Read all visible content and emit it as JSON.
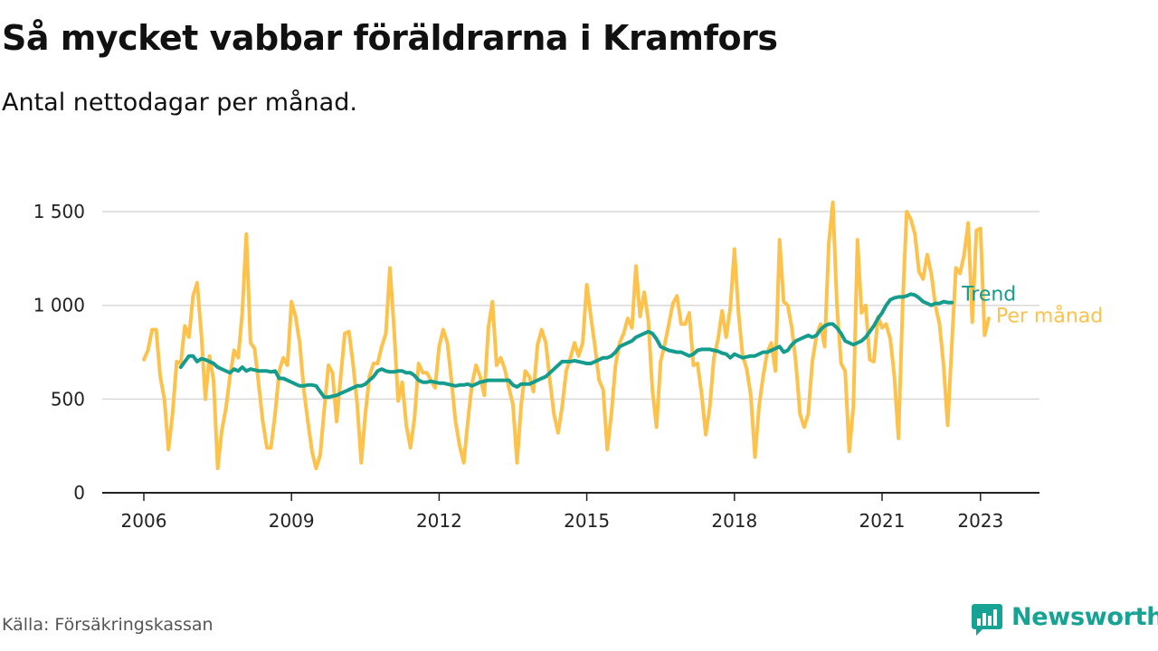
{
  "header": {
    "title": "Så mycket vabbar föräldrarna i Kramfors",
    "subtitle": "Antal nettodagar per månad."
  },
  "footer": {
    "source": "Källa: Försäkringskassan",
    "brand": "Newsworthy",
    "brand_icon": "bar-chart-speech-bubble-icon"
  },
  "colors": {
    "monthly": "#fcc24c",
    "trend": "#159c8c",
    "grid": "#d9d9d9",
    "axis": "#222222",
    "brand": "#17a394"
  },
  "chart_data": {
    "type": "line",
    "title": "Så mycket vabbar föräldrarna i Kramfors",
    "subtitle": "Antal nettodagar per månad.",
    "xlabel": "",
    "ylabel": "",
    "x_ticks": [
      "2006",
      "2009",
      "2012",
      "2015",
      "2018",
      "2021",
      "2023"
    ],
    "y_ticks": [
      "0",
      "500",
      "1 000",
      "1 500"
    ],
    "y_tick_values": [
      0,
      500,
      1000,
      1500
    ],
    "ylim": [
      0,
      1550
    ],
    "xlim": [
      "2006-01",
      "2023-04"
    ],
    "grid": "horizontal",
    "legend": "direct labels at right end of lines",
    "series": [
      {
        "name": "Trend",
        "color": "#159c8c",
        "start": "2006-10",
        "values": [
          670,
          700,
          730,
          730,
          700,
          715,
          710,
          700,
          690,
          670,
          660,
          650,
          640,
          660,
          650,
          670,
          650,
          660,
          655,
          650,
          650,
          650,
          645,
          650,
          610,
          610,
          600,
          590,
          580,
          570,
          570,
          575,
          575,
          570,
          540,
          510,
          510,
          515,
          520,
          530,
          540,
          550,
          560,
          570,
          570,
          580,
          600,
          620,
          650,
          660,
          650,
          645,
          645,
          650,
          650,
          640,
          640,
          625,
          600,
          590,
          590,
          595,
          590,
          585,
          585,
          580,
          575,
          570,
          575,
          575,
          580,
          570,
          580,
          590,
          595,
          600,
          600,
          600,
          600,
          600,
          600,
          575,
          565,
          580,
          580,
          580,
          590,
          600,
          610,
          620,
          640,
          660,
          680,
          700,
          700,
          700,
          705,
          700,
          695,
          690,
          690,
          700,
          710,
          720,
          720,
          730,
          750,
          780,
          790,
          800,
          810,
          830,
          840,
          850,
          860,
          850,
          820,
          780,
          770,
          760,
          755,
          750,
          750,
          740,
          730,
          740,
          760,
          765,
          765,
          765,
          760,
          755,
          745,
          740,
          720,
          740,
          730,
          720,
          725,
          730,
          730,
          740,
          750,
          750,
          760,
          770,
          780,
          750,
          760,
          790,
          810,
          820,
          830,
          840,
          830,
          840,
          870,
          890,
          900,
          900,
          880,
          850,
          810,
          800,
          790,
          800,
          810,
          830,
          860,
          890,
          930,
          960,
          1000,
          1030,
          1040,
          1045,
          1045,
          1050,
          1060,
          1055,
          1040,
          1020,
          1010,
          1000,
          1010,
          1010,
          1020,
          1015,
          1015
        ]
      },
      {
        "name": "Per månad",
        "color": "#fcc24c",
        "start": "2006-01",
        "values": [
          710,
          760,
          870,
          870,
          620,
          500,
          230,
          420,
          700,
          690,
          890,
          830,
          1050,
          1120,
          850,
          500,
          730,
          600,
          130,
          330,
          450,
          620,
          760,
          720,
          960,
          1380,
          800,
          770,
          580,
          380,
          240,
          240,
          420,
          650,
          720,
          680,
          1020,
          940,
          800,
          550,
          380,
          220,
          130,
          200,
          450,
          680,
          640,
          380,
          620,
          850,
          860,
          690,
          480,
          160,
          420,
          620,
          690,
          690,
          780,
          850,
          1200,
          880,
          490,
          590,
          360,
          240,
          400,
          690,
          640,
          640,
          600,
          560,
          780,
          870,
          800,
          600,
          380,
          250,
          160,
          380,
          580,
          680,
          620,
          520,
          880,
          1020,
          680,
          720,
          660,
          560,
          470,
          160,
          470,
          650,
          620,
          540,
          790,
          870,
          800,
          600,
          420,
          320,
          460,
          650,
          720,
          800,
          730,
          800,
          1110,
          940,
          780,
          600,
          550,
          230,
          420,
          680,
          800,
          850,
          930,
          880,
          1210,
          940,
          1070,
          920,
          550,
          350,
          700,
          790,
          900,
          1010,
          1050,
          900,
          900,
          960,
          680,
          690,
          530,
          310,
          460,
          720,
          820,
          970,
          830,
          990,
          1300,
          960,
          730,
          660,
          520,
          190,
          460,
          620,
          750,
          800,
          650,
          1350,
          1020,
          1000,
          880,
          690,
          420,
          350,
          420,
          700,
          840,
          900,
          780,
          1330,
          1550,
          1000,
          690,
          650,
          220,
          460,
          1350,
          960,
          1000,
          710,
          700,
          940,
          880,
          900,
          820,
          620,
          290,
          1000,
          1500,
          1460,
          1380,
          1180,
          1140,
          1270,
          1170,
          1000,
          900,
          680,
          360,
          790,
          1200,
          1170,
          1270,
          1440,
          910,
          1400,
          1410,
          840,
          930
        ]
      }
    ]
  }
}
